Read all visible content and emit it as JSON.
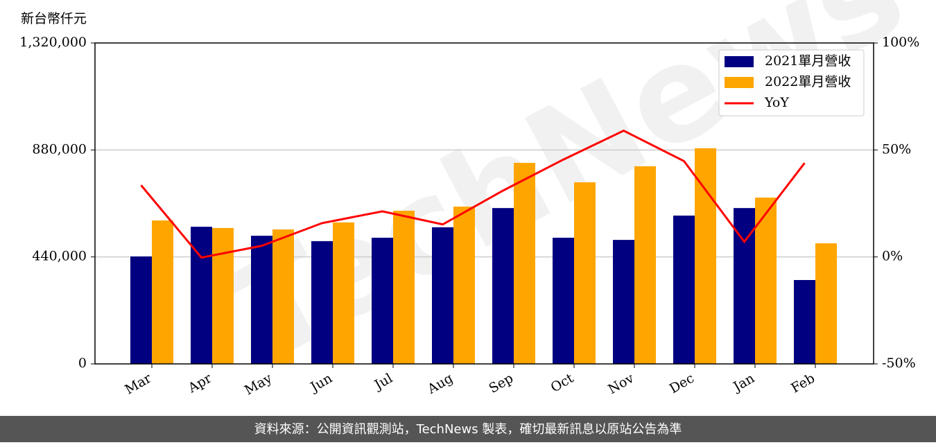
{
  "chart_data": {
    "type": "bar_line",
    "y_label": "新台幣仟元",
    "watermark": "TechNews",
    "source_note": "資料來源：公開資訊觀測站，TechNews 製表，確切最新訊息以原站公告為準",
    "categories": [
      "Mar",
      "Apr",
      "May",
      "Jun",
      "Jul",
      "Aug",
      "Sep",
      "Oct",
      "Nov",
      "Dec",
      "Jan",
      "Feb"
    ],
    "series": [
      {
        "name": "2021單月營收",
        "color": "#000080",
        "type": "bar",
        "values": [
          442000,
          564000,
          527000,
          505000,
          519000,
          562000,
          641000,
          519000,
          510000,
          610000,
          641000,
          345000
        ]
      },
      {
        "name": "2022單月營收",
        "color": "#ffa500",
        "type": "bar",
        "values": [
          590000,
          559000,
          553000,
          582000,
          630000,
          647000,
          827000,
          747000,
          813000,
          887000,
          684000,
          496000
        ]
      },
      {
        "name": "YoY",
        "color": "#ff0000",
        "type": "line",
        "axis": "y2",
        "values": [
          33.5,
          -0.3,
          5.2,
          15.8,
          21.3,
          15.2,
          31,
          45.5,
          59,
          44.8,
          7.1,
          43.9
        ]
      }
    ],
    "ylim": [
      0,
      1320000
    ],
    "yticks": [
      0,
      {
        "value": 440000,
        "label": "440,000"
      },
      {
        "value": 880000,
        "label": "880,000"
      },
      {
        "value": 1320000,
        "label": "1,320,000"
      }
    ],
    "y2lim": [
      -50,
      100
    ],
    "y2ticks": [
      {
        "value": -50,
        "label": "-50%"
      },
      {
        "value": 0,
        "label": "0%"
      },
      {
        "value": 50,
        "label": "50%"
      },
      {
        "value": 100,
        "label": "100%"
      }
    ],
    "grid": true,
    "legend": "upper right"
  }
}
